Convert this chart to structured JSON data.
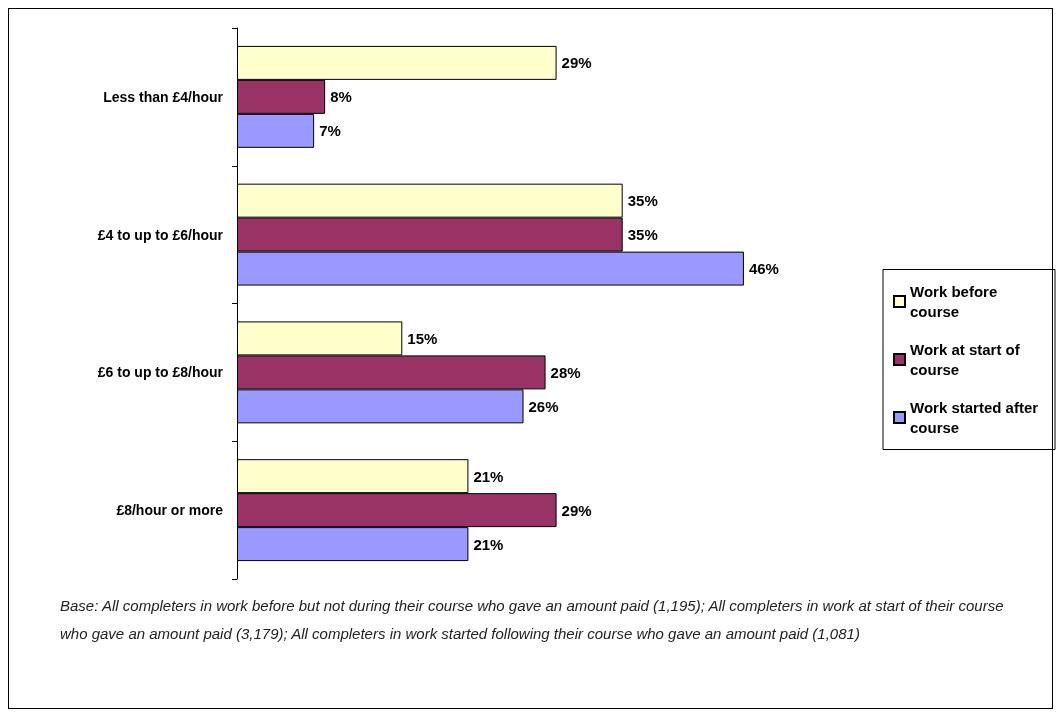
{
  "chart_data": {
    "type": "bar",
    "orientation": "horizontal",
    "categories": [
      "Less than £4/hour",
      "£4 to up to £6/hour",
      "£6 to up to £8/hour",
      "£8/hour or more"
    ],
    "series": [
      {
        "name": "Work before course",
        "color": "#ffffcc",
        "values": [
          29,
          35,
          15,
          21
        ],
        "value_labels": [
          "29%",
          "35%",
          "15%",
          "21%"
        ]
      },
      {
        "name": "Work at start of course",
        "color": "#993366",
        "values": [
          8,
          35,
          28,
          29
        ],
        "value_labels": [
          "8%",
          "35%",
          "28%",
          "29%"
        ]
      },
      {
        "name": "Work started after course",
        "color": "#9999ff",
        "values": [
          7,
          46,
          26,
          21
        ],
        "value_labels": [
          "7%",
          "46%",
          "26%",
          "21%"
        ]
      }
    ],
    "legend": "right",
    "grid": false,
    "annotations": [
      "Base:  All completers in work before but not during their course who gave an amount paid (1,195); All completers in work at start of their course who gave an amount paid (3,179); All completers in work started following their course who gave an amount paid (1,081)"
    ]
  }
}
